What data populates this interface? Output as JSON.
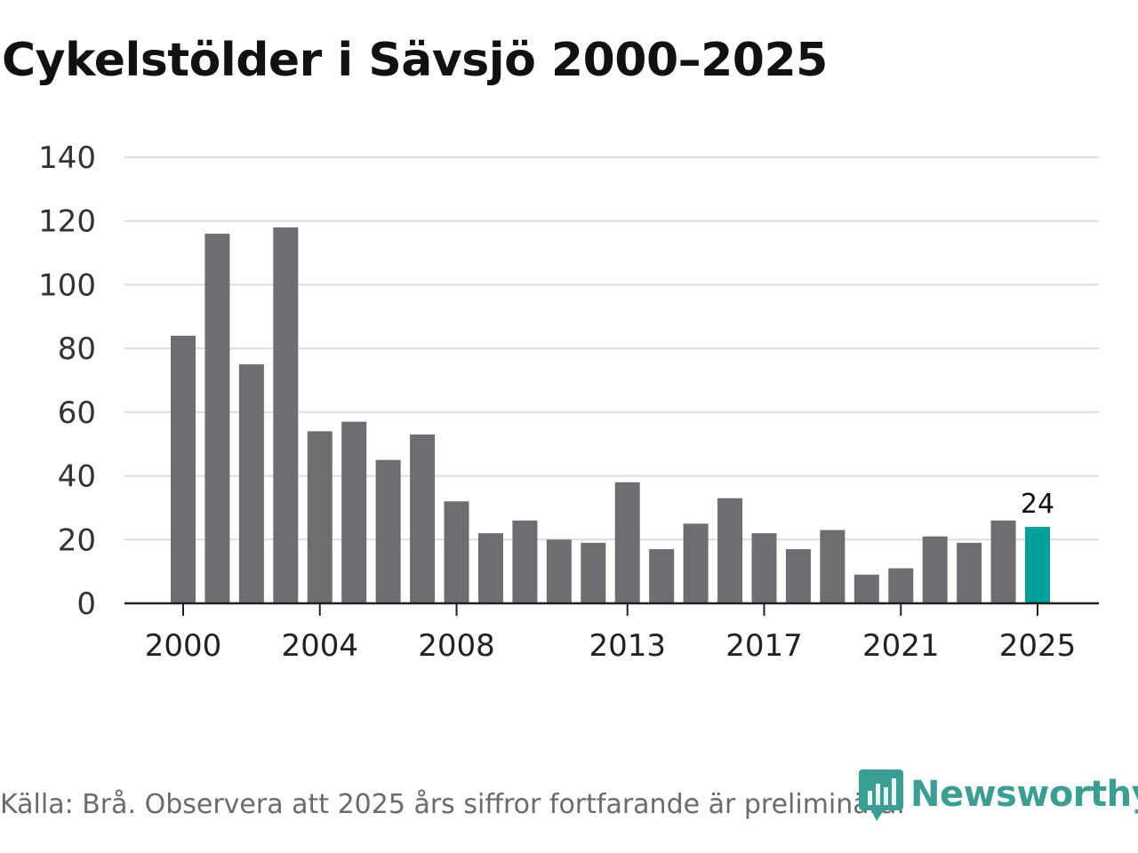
{
  "title": "Cykelstölder i Sävsjö 2000–2025",
  "source": "Källa: Brå. Observera att 2025 års siffror fortfarande är preliminära.",
  "brand": {
    "name": "Newsworthy",
    "icon": "newsworthy-logo-icon",
    "color": "#3a9e95"
  },
  "colors": {
    "bar": "#6e6d72",
    "highlight": "#00a19b",
    "grid": "#dddddd",
    "axis": "#222222"
  },
  "chart_data": {
    "type": "bar",
    "title": "Cykelstölder i Sävsjö 2000–2025",
    "xlabel": "",
    "ylabel": "",
    "ylim": [
      0,
      140
    ],
    "yticks": [
      0,
      20,
      40,
      60,
      80,
      100,
      120,
      140
    ],
    "xtick_labels": [
      "2000",
      "2004",
      "2008",
      "2013",
      "2017",
      "2021",
      "2025"
    ],
    "grid": true,
    "categories": [
      "2000",
      "2001",
      "2002",
      "2003",
      "2004",
      "2005",
      "2006",
      "2007",
      "2008",
      "2009",
      "2010",
      "2011",
      "2012",
      "2013",
      "2014",
      "2015",
      "2016",
      "2017",
      "2018",
      "2019",
      "2020",
      "2021",
      "2022",
      "2023",
      "2024",
      "2025"
    ],
    "values": [
      84,
      116,
      75,
      118,
      54,
      57,
      45,
      53,
      32,
      22,
      26,
      20,
      19,
      38,
      17,
      25,
      33,
      22,
      17,
      23,
      9,
      11,
      21,
      19,
      26,
      24
    ],
    "highlight": {
      "category": "2025",
      "label": "24"
    }
  }
}
